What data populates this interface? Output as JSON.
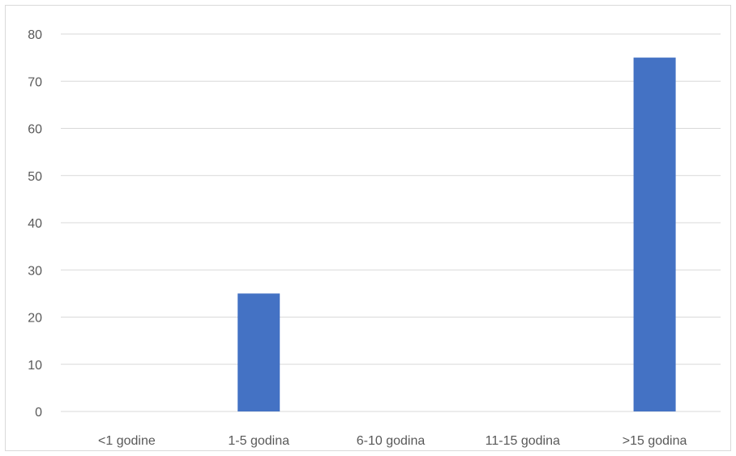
{
  "chart_data": {
    "type": "bar",
    "categories": [
      "<1 godine",
      "1-5 godina",
      "6-10 godina",
      "11-15 godina",
      ">15 godina"
    ],
    "values": [
      0,
      25,
      0,
      0,
      75
    ],
    "yticks": [
      "0",
      "10",
      "20",
      "30",
      "40",
      "50",
      "60",
      "70",
      "80"
    ],
    "ylim": [
      0,
      80
    ],
    "grid": true,
    "legend": "none",
    "colors": {
      "bar": "#4472c4",
      "grid": "#d9d9d9",
      "text": "#595959",
      "border": "#d9d9d9"
    }
  }
}
